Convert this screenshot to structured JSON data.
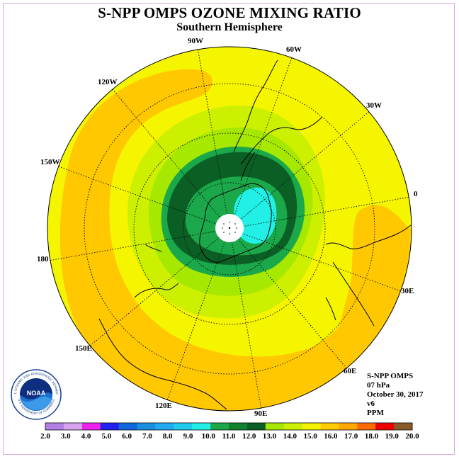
{
  "header": {
    "title": "S-NPP OMPS OZONE MIXING RATIO",
    "subtitle": "Southern Hemisphere"
  },
  "longitude_labels": [
    "90W",
    "60W",
    "30W",
    "0",
    "30E",
    "60E",
    "90E",
    "120E",
    "150E",
    "180",
    "150W",
    "120W"
  ],
  "info": {
    "instrument": "S-NPP OMPS",
    "level": "07 hPa",
    "date": "October 30, 2017",
    "version": "v6",
    "units": "PPM"
  },
  "logo": {
    "text": "NOAA",
    "ring_text": "NATIONAL OCEANIC AND ATMOSPHERIC ADMINISTRATION",
    "ring_text_bottom": "U.S. DEPARTMENT OF COMMERCE"
  },
  "colorbar": {
    "labels": [
      "2.0",
      "3.0",
      "4.0",
      "5.0",
      "6.0",
      "7.0",
      "8.0",
      "9.0",
      "10.0",
      "11.0",
      "12.0",
      "13.0",
      "14.0",
      "15.0",
      "16.0",
      "17.0",
      "18.0",
      "19.0",
      "20.0"
    ],
    "colors": [
      "#b27fe6",
      "#d7a3f0",
      "#ee22ee",
      "#2222ee",
      "#1166dd",
      "#1a8fe0",
      "#22aaee",
      "#22c9ee",
      "#22f0e6",
      "#1aa84a",
      "#11802f",
      "#0c5f24",
      "#a6e800",
      "#ccf000",
      "#f3f300",
      "#ffcc00",
      "#ffa800",
      "#ff6a00",
      "#ee0000",
      "#8b5a2b"
    ]
  },
  "colors": {
    "background": "#ffffff",
    "field_yellow": "#f5f500",
    "field_orange": "#ffc800",
    "field_lime": "#ccf000",
    "field_green": "#a6e800",
    "field_mid_green": "#1aa84a",
    "field_dark_green": "#0c5f24",
    "field_cyan": "#22f0e6"
  }
}
